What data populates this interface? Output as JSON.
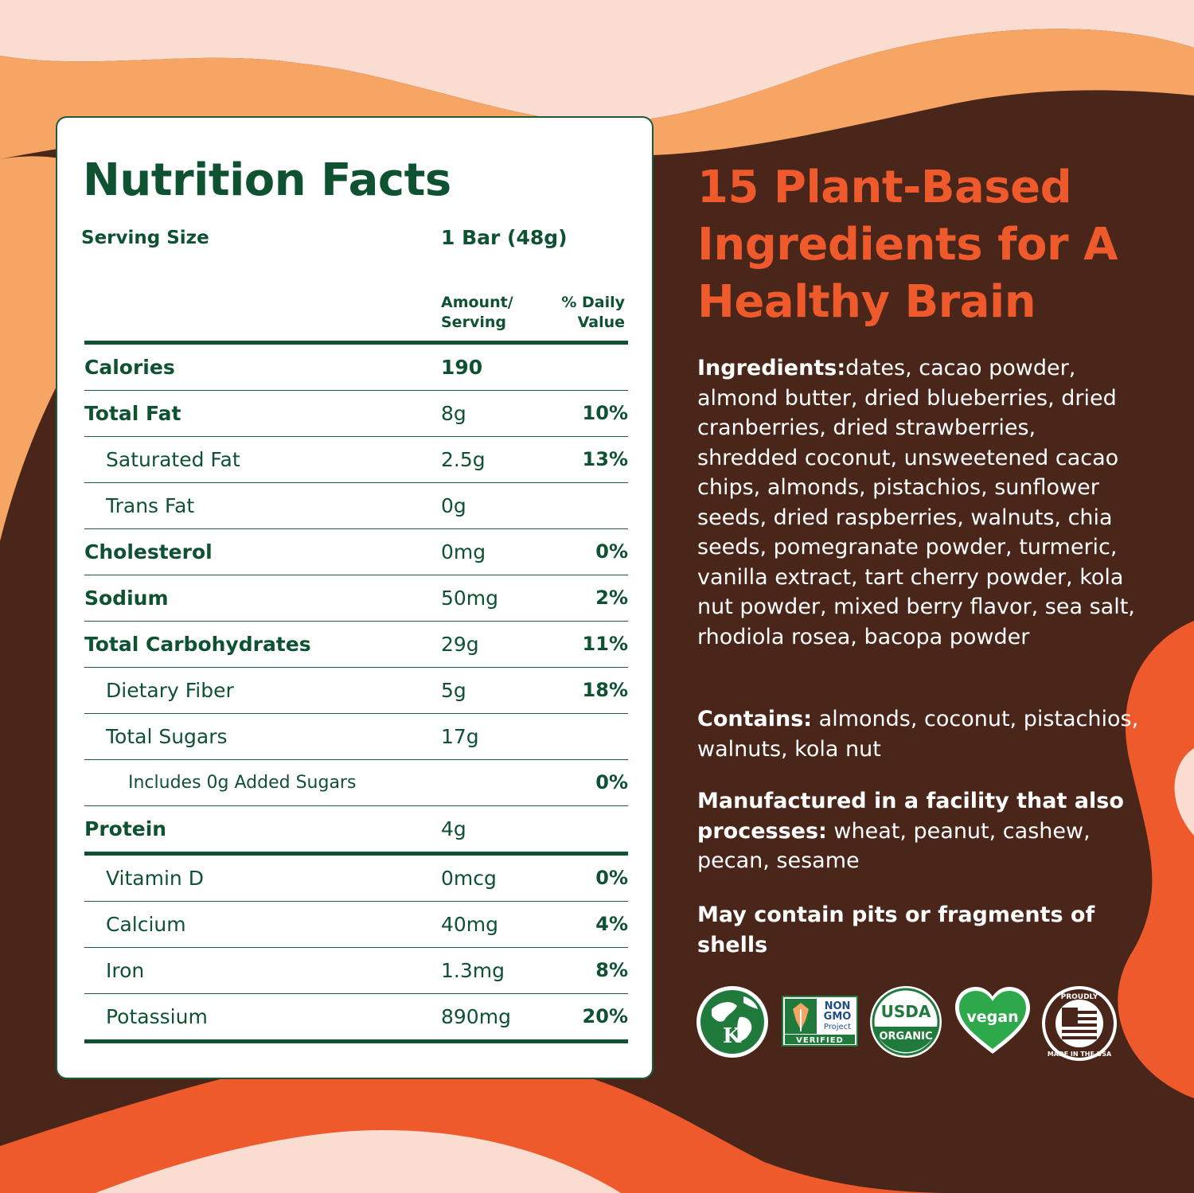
{
  "colors": {
    "background": "#4a2519",
    "peach": "#f6a564",
    "pale_pink": "#fbdcd0",
    "orange": "#ee5a2c",
    "label_green": "#0e5232",
    "white": "#ffffff"
  },
  "nutrition": {
    "title": "Nutrition Facts",
    "serving_label": "Serving Size",
    "serving_value": "1 Bar (48g)",
    "col_amount": "Amount/\nServing",
    "col_dv": "% Daily\nValue",
    "rows": [
      {
        "label": "Calories",
        "amount": "190",
        "dv": ""
      },
      {
        "label": "Total Fat",
        "amount": "8g",
        "dv": "10%"
      },
      {
        "label": "Saturated Fat",
        "amount": "2.5g",
        "dv": "13%"
      },
      {
        "label": "Trans Fat",
        "amount": "0g",
        "dv": ""
      },
      {
        "label": "Cholesterol",
        "amount": "0mg",
        "dv": "0%"
      },
      {
        "label": "Sodium",
        "amount": "50mg",
        "dv": "2%"
      },
      {
        "label": "Total Carbohydrates",
        "amount": "29g",
        "dv": "11%"
      },
      {
        "label": "Dietary Fiber",
        "amount": "5g",
        "dv": "18%"
      },
      {
        "label": "Total Sugars",
        "amount": "17g",
        "dv": ""
      },
      {
        "label": "Includes 0g Added Sugars",
        "amount": "",
        "dv": "0%"
      },
      {
        "label": "Protein",
        "amount": "4g",
        "dv": ""
      },
      {
        "label": "Vitamin D",
        "amount": "0mcg",
        "dv": "0%"
      },
      {
        "label": "Calcium",
        "amount": "40mg",
        "dv": "4%"
      },
      {
        "label": "Iron",
        "amount": "1.3mg",
        "dv": "8%"
      },
      {
        "label": "Potassium",
        "amount": "890mg",
        "dv": "20%"
      }
    ]
  },
  "info": {
    "headline": "15 Plant-Based Ingredients for A Healthy Brain",
    "ingredients_label": "Ingredients:",
    "ingredients_text": "dates, cacao powder, almond butter, dried blueberries, dried cranberries, dried strawberries, shredded coconut, unsweetened cacao chips, almonds, pistachios, sunflower seeds, dried raspberries, walnuts, chia seeds, pomegranate powder, turmeric, vanilla extract, tart cherry powder, kola nut powder, mixed berry flavor, sea salt, rhodiola rosea, bacopa powder",
    "contains_label": "Contains:",
    "contains_text": " almonds, coconut, pistachios, walnuts, kola nut",
    "facility_label": "Manufactured in a facility that also processes:",
    "facility_text": " wheat, peanut, cashew, pecan, sesame",
    "pits_warning": "May contain pits or fragments of shells"
  },
  "badges": {
    "kosher_letter": "K",
    "nongmo_line1": "NON",
    "nongmo_line2": "GMO",
    "nongmo_line3": "Project",
    "nongmo_line4": "VERIFIED",
    "usda_top": "USDA",
    "usda_bottom": "ORGANIC",
    "vegan": "vegan",
    "usa_top": "PROUDLY",
    "usa_bottom": "MADE IN THE USA"
  }
}
